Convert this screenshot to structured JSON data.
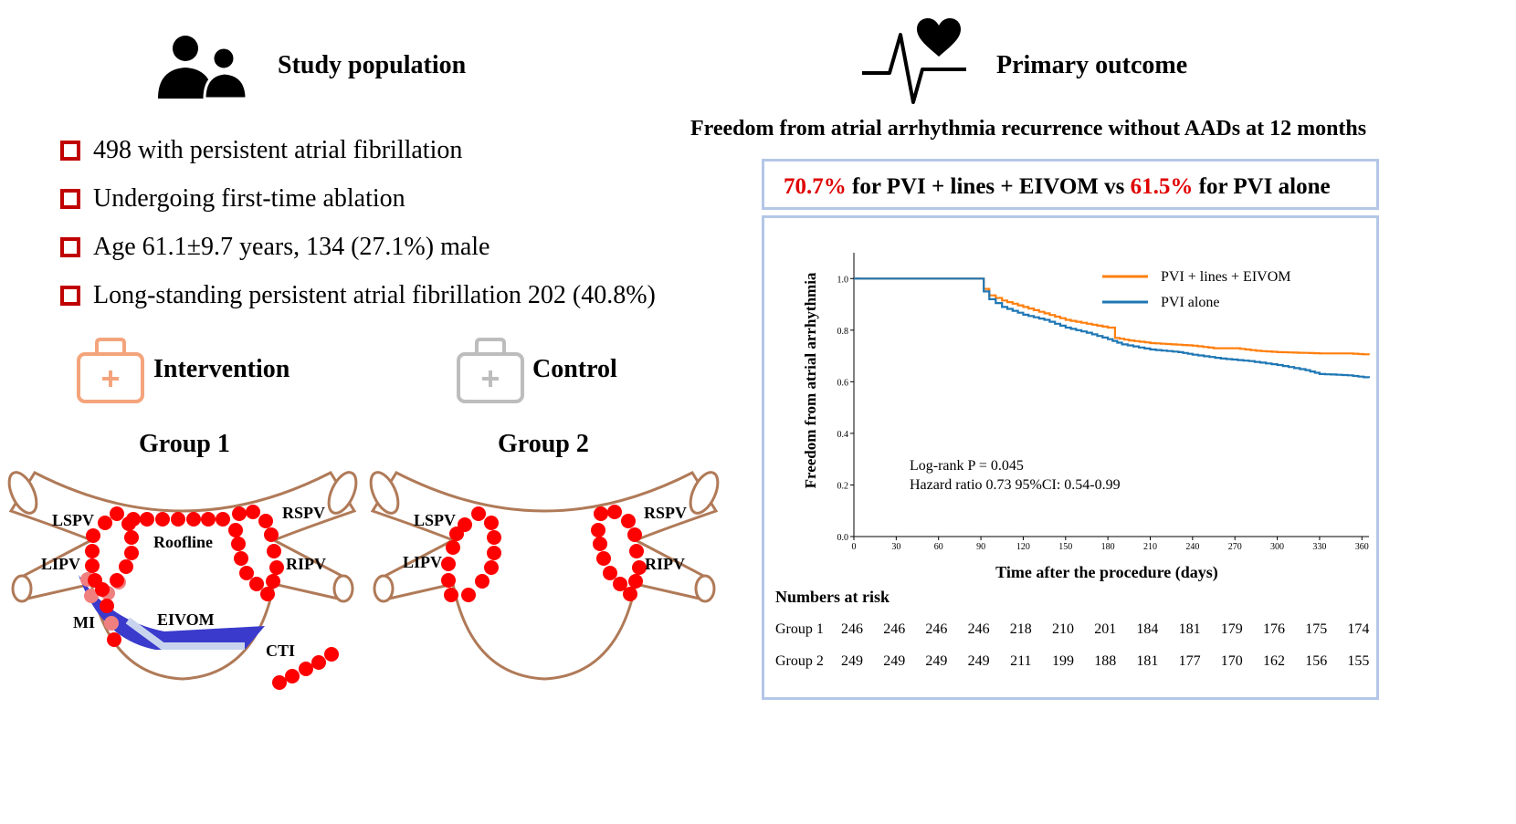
{
  "left": {
    "title": "Study population",
    "icon": "people-icon",
    "bullets": [
      "498 with persistent atrial fibrillation",
      "Undergoing first-time ablation",
      "Age 61.1±9.7 years, 134 (27.1%) male",
      "Long-standing persistent atrial fibrillation 202 (40.8%)"
    ],
    "intervention_label": "Intervention",
    "control_label": "Control",
    "group1_title": "Group 1",
    "group2_title": "Group 2",
    "diagram1_labels": {
      "lspv": "LSPV",
      "lipv": "LIPV",
      "rspv": "RSPV",
      "ripv": "RIPV",
      "roofline": "Roofline",
      "mi": "MI",
      "eivom": "EIVOM",
      "cti": "CTI"
    },
    "diagram2_labels": {
      "lspv": "LSPV",
      "lipv": "LIPV",
      "rspv": "RSPV",
      "ripv": "RIPV"
    }
  },
  "right": {
    "title": "Primary outcome",
    "icon": "heartbeat-icon",
    "headline": "Freedom from atrial arrhythmia recurrence without AADs at 12 months",
    "result": {
      "value1": "70.7%",
      "text1": " for PVI + lines + EIVOM vs ",
      "value2": "61.5%",
      "text2": " for PVI alone"
    }
  },
  "chart_data": {
    "type": "line",
    "xlabel": "Time after the procedure (days)",
    "ylabel": "Freedom from atrial arrhythmia",
    "xlim": [
      0,
      365
    ],
    "ylim": [
      0,
      1.1
    ],
    "x_ticks": [
      0,
      30,
      60,
      90,
      120,
      150,
      180,
      210,
      240,
      270,
      300,
      330,
      360
    ],
    "y_ticks": [
      0.0,
      0.2,
      0.4,
      0.6,
      0.8,
      1.0
    ],
    "legend_position": "top-right",
    "series": [
      {
        "name": "PVI + lines + EIVOM",
        "color": "#ff7f0e",
        "points": [
          [
            0,
            1.0
          ],
          [
            90,
            1.0
          ],
          [
            92,
            0.96
          ],
          [
            96,
            0.935
          ],
          [
            105,
            0.915
          ],
          [
            120,
            0.89
          ],
          [
            135,
            0.865
          ],
          [
            150,
            0.84
          ],
          [
            165,
            0.825
          ],
          [
            180,
            0.81
          ],
          [
            185,
            0.77
          ],
          [
            195,
            0.76
          ],
          [
            210,
            0.75
          ],
          [
            240,
            0.74
          ],
          [
            255,
            0.73
          ],
          [
            270,
            0.73
          ],
          [
            285,
            0.72
          ],
          [
            300,
            0.715
          ],
          [
            330,
            0.71
          ],
          [
            350,
            0.71
          ],
          [
            365,
            0.705
          ]
        ]
      },
      {
        "name": "PVI alone",
        "color": "#1f77b4",
        "points": [
          [
            0,
            1.0
          ],
          [
            90,
            1.0
          ],
          [
            92,
            0.95
          ],
          [
            96,
            0.92
          ],
          [
            105,
            0.89
          ],
          [
            120,
            0.86
          ],
          [
            135,
            0.84
          ],
          [
            150,
            0.81
          ],
          [
            165,
            0.79
          ],
          [
            180,
            0.765
          ],
          [
            190,
            0.745
          ],
          [
            210,
            0.725
          ],
          [
            230,
            0.715
          ],
          [
            240,
            0.705
          ],
          [
            260,
            0.69
          ],
          [
            280,
            0.68
          ],
          [
            300,
            0.665
          ],
          [
            320,
            0.645
          ],
          [
            330,
            0.63
          ],
          [
            350,
            0.625
          ],
          [
            365,
            0.615
          ]
        ]
      }
    ],
    "annotations": [
      "Log-rank P = 0.045",
      "Hazard ratio 0.73 95%CI: 0.54-0.99"
    ],
    "risk_table": {
      "title": "Numbers at risk",
      "rows": [
        {
          "label": "Group 1",
          "values": [
            "246",
            "246",
            "246",
            "246",
            "218",
            "210",
            "201",
            "184",
            "181",
            "179",
            "176",
            "175",
            "174"
          ]
        },
        {
          "label": "Group 2",
          "values": [
            "249",
            "249",
            "249",
            "249",
            "211",
            "199",
            "188",
            "181",
            "177",
            "170",
            "162",
            "156",
            "155"
          ]
        }
      ]
    }
  }
}
